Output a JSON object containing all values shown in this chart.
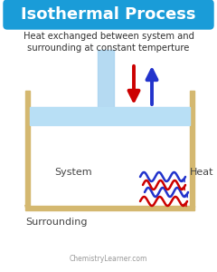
{
  "title": "Isothermal Process",
  "title_bg": "#1a9cd8",
  "title_color": "#ffffff",
  "subtitle": "Heat exchanged between system and\nsurrounding at constant temperture",
  "subtitle_color": "#333333",
  "bg_color": "#ffffff",
  "container_color": "#d4b870",
  "piston_stem_color": "#a8d4f0",
  "liquid_color": "#b8dff5",
  "system_label": "System",
  "surrounding_label": "Surrounding",
  "heat_label": "Heat",
  "watermark": "ChemistryLearner.com",
  "arrow_down_color": "#cc0000",
  "arrow_up_color": "#2233cc",
  "squiggle_red": "#cc0000",
  "squiggle_blue": "#2233cc"
}
